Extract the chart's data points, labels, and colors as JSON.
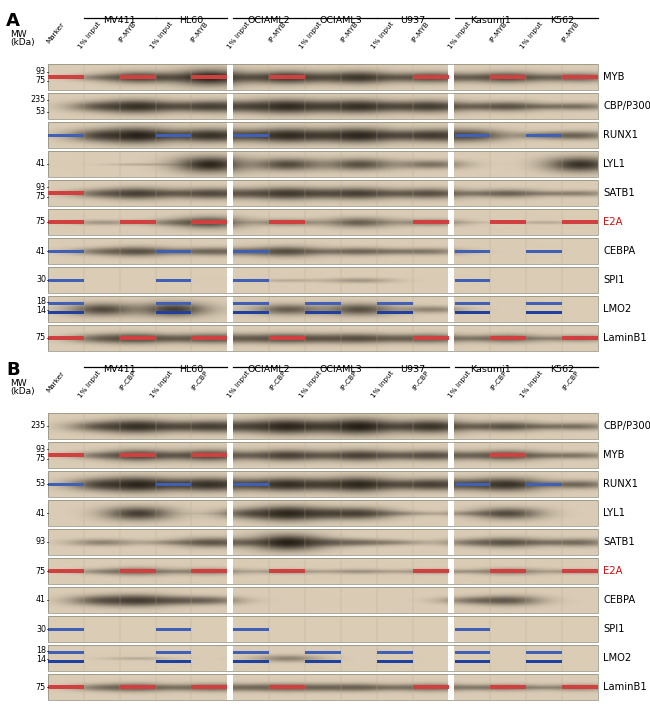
{
  "panel_A_label": "A",
  "panel_B_label": "B",
  "row_labels_A": [
    "MYB",
    "CBP/P300",
    "RUNX1",
    "LYL1",
    "SATB1",
    "E2A",
    "CEBPA",
    "SPI1",
    "LMO2",
    "LaminB1"
  ],
  "row_labels_B": [
    "CBP/P300",
    "MYB",
    "RUNX1",
    "LYL1",
    "SATB1",
    "E2A",
    "CEBPA",
    "SPI1",
    "LMO2",
    "LaminB1"
  ],
  "red_row_labels_A": [
    5
  ],
  "red_row_labels_B": [
    5
  ],
  "cell_lines": [
    "MV411",
    "HL60",
    "OCIAML2",
    "OCIAML3",
    "U937",
    "Kasumi1",
    "K562"
  ],
  "col_headers_A": [
    "Marker",
    "1% Input",
    "IP-MYB",
    "1% Input",
    "IP-MYB",
    "1% Input",
    "IP-MYB",
    "1% Input",
    "IP-MYB",
    "1% Input",
    "IP-MYB",
    "1% Input",
    "IP-MYB",
    "1% Input",
    "IP-MYB"
  ],
  "col_headers_B": [
    "Marker",
    "1% Input",
    "IP-CBP",
    "1% Input",
    "IP-CBP",
    "1% Input",
    "IP-CBP",
    "1% Input",
    "IP-CBP",
    "1% Input",
    "IP-CBP",
    "1% Input",
    "IP-CBP",
    "1% Input",
    "IP-CBP"
  ],
  "bg_tan": "#ddd0b8",
  "bg_light": "#e8dcc8",
  "bg_dark": "#c8b898",
  "band_dark": "#1a1208",
  "red_marker": "#d04040",
  "blue_marker_1": "#4060b8",
  "blue_marker_2": "#2040a0",
  "mw_labels_A": [
    [
      [
        "93",
        0.3
      ],
      [
        "75",
        0.65
      ]
    ],
    [
      [
        "235",
        0.25
      ],
      [
        "53",
        0.72
      ]
    ],
    [],
    [
      [
        "41",
        0.5
      ]
    ],
    [
      [
        "93",
        0.28
      ],
      [
        "75",
        0.65
      ]
    ],
    [
      [
        "75",
        0.5
      ]
    ],
    [
      [
        "41",
        0.5
      ]
    ],
    [
      [
        "30",
        0.5
      ]
    ],
    [
      [
        "18",
        0.22
      ],
      [
        "14",
        0.55
      ]
    ],
    [
      [
        "75",
        0.5
      ]
    ]
  ],
  "mw_labels_B": [
    [
      [
        "235",
        0.5
      ]
    ],
    [
      [
        "93",
        0.28
      ],
      [
        "75",
        0.65
      ]
    ],
    [
      [
        "53",
        0.5
      ]
    ],
    [
      [
        "41",
        0.5
      ]
    ],
    [
      [
        "93",
        0.5
      ]
    ],
    [
      [
        "75",
        0.5
      ]
    ],
    [
      [
        "41",
        0.5
      ]
    ],
    [
      [
        "30",
        0.5
      ]
    ],
    [
      [
        "18",
        0.22
      ],
      [
        "14",
        0.55
      ]
    ],
    [
      [
        "75",
        0.5
      ]
    ]
  ],
  "band_patterns_A": [
    [
      0,
      0.35,
      0.65,
      0.42,
      0.88,
      0.45,
      0.72,
      0.45,
      0.72,
      0.38,
      0.6,
      0.4,
      0.62,
      0.32,
      0.52
    ],
    [
      0,
      0.55,
      0.75,
      0.45,
      0.65,
      0.58,
      0.78,
      0.55,
      0.75,
      0.48,
      0.68,
      0.38,
      0.55,
      0.28,
      0.42
    ],
    [
      0,
      0.65,
      0.85,
      0.48,
      0.75,
      0.55,
      0.78,
      0.58,
      0.82,
      0.48,
      0.68,
      0.65,
      0.0,
      0.38,
      0.48
    ],
    [
      0,
      0.0,
      0.15,
      0.08,
      0.88,
      0.0,
      0.68,
      0.0,
      0.65,
      0.0,
      0.48,
      0.0,
      0.0,
      0.0,
      0.82
    ],
    [
      0,
      0.45,
      0.65,
      0.38,
      0.6,
      0.48,
      0.68,
      0.48,
      0.65,
      0.38,
      0.58,
      0.28,
      0.48,
      0.22,
      0.35
    ],
    [
      0,
      0.28,
      0.0,
      0.35,
      0.65,
      0.08,
      0.38,
      0.08,
      0.55,
      0.08,
      0.38,
      0.08,
      0.0,
      0.18,
      0.0
    ],
    [
      0,
      0.38,
      0.55,
      0.28,
      0.45,
      0.38,
      0.58,
      0.28,
      0.45,
      0.28,
      0.38,
      0.0,
      0.0,
      0.0,
      0.0
    ],
    [
      0,
      0.0,
      0.0,
      0.0,
      0.0,
      0.0,
      0.18,
      0.0,
      0.28,
      0.0,
      0.0,
      0.0,
      0.0,
      0.0,
      0.0
    ],
    [
      0,
      0.68,
      0.0,
      0.75,
      0.0,
      0.0,
      0.58,
      0.0,
      0.65,
      0.0,
      0.38,
      0.0,
      0.0,
      0.0,
      0.0
    ],
    [
      0,
      0.48,
      0.58,
      0.38,
      0.55,
      0.45,
      0.55,
      0.45,
      0.55,
      0.38,
      0.52,
      0.28,
      0.48,
      0.18,
      0.38
    ]
  ],
  "band_patterns_B": [
    [
      0,
      0.55,
      0.75,
      0.48,
      0.65,
      0.58,
      0.82,
      0.55,
      0.88,
      0.45,
      0.75,
      0.38,
      0.55,
      0.28,
      0.42
    ],
    [
      0,
      0.38,
      0.65,
      0.38,
      0.65,
      0.38,
      0.65,
      0.38,
      0.65,
      0.38,
      0.58,
      0.38,
      0.58,
      0.28,
      0.38
    ],
    [
      0,
      0.65,
      0.82,
      0.55,
      0.75,
      0.55,
      0.75,
      0.55,
      0.82,
      0.45,
      0.65,
      0.55,
      0.75,
      0.28,
      0.48
    ],
    [
      0,
      0.0,
      0.75,
      0.0,
      0.08,
      0.55,
      0.82,
      0.55,
      0.65,
      0.28,
      0.08,
      0.28,
      0.65,
      0.0,
      0.0
    ],
    [
      0,
      0.38,
      0.0,
      0.28,
      0.55,
      0.38,
      0.88,
      0.45,
      0.38,
      0.28,
      0.0,
      0.38,
      0.55,
      0.28,
      0.45
    ],
    [
      0,
      0.28,
      0.45,
      0.18,
      0.38,
      0.08,
      0.28,
      0.08,
      0.28,
      0.08,
      0.28,
      0.18,
      0.38,
      0.08,
      0.28
    ],
    [
      0,
      0.55,
      0.65,
      0.45,
      0.45,
      0.0,
      0.0,
      0.0,
      0.0,
      0.0,
      0.0,
      0.38,
      0.55,
      0.0,
      0.0
    ],
    [
      0,
      0.0,
      0.0,
      0.0,
      0.0,
      0.0,
      0.0,
      0.0,
      0.0,
      0.0,
      0.0,
      0.0,
      0.0,
      0.0,
      0.0
    ],
    [
      0,
      0.0,
      0.18,
      0.0,
      0.0,
      0.0,
      0.38,
      0.0,
      0.0,
      0.0,
      0.0,
      0.0,
      0.0,
      0.0,
      0.0
    ],
    [
      0,
      0.38,
      0.48,
      0.28,
      0.45,
      0.38,
      0.45,
      0.38,
      0.45,
      0.28,
      0.45,
      0.28,
      0.38,
      0.18,
      0.38
    ]
  ],
  "red_marker_rows_A": [
    0,
    4,
    5,
    9
  ],
  "blue_marker_rows_A": [
    2,
    6,
    7,
    8
  ],
  "red_marker_rows_B": [
    1,
    5,
    9
  ],
  "blue_marker_rows_B": [
    2,
    7,
    8
  ],
  "lmo2_blue_rows_A": [
    8
  ],
  "lmo2_blue_rows_B": [
    8
  ]
}
